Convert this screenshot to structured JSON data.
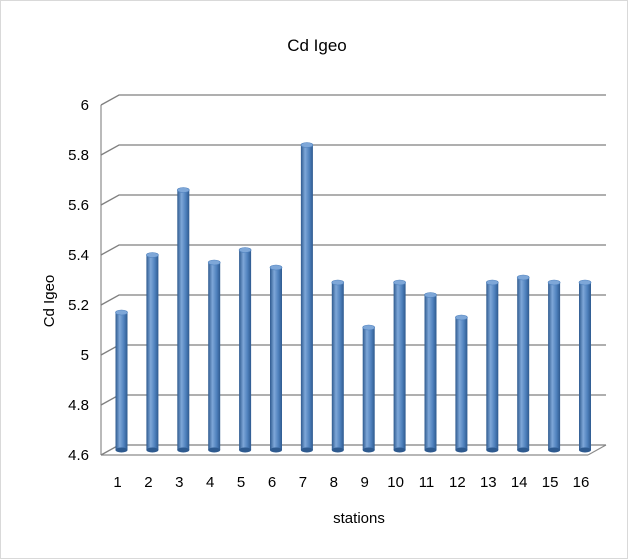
{
  "chart_data": {
    "type": "bar",
    "title": "Cd Igeo",
    "xlabel": "stations",
    "ylabel": "Cd Igeo",
    "ylim": [
      4.6,
      6.0
    ],
    "yticks": [
      4.6,
      4.8,
      5.0,
      5.2,
      5.4,
      5.6,
      5.8,
      6.0
    ],
    "ytick_labels": [
      "4.6",
      "4.8",
      "5",
      "5.2",
      "5.4",
      "5.6",
      "5.8",
      "6"
    ],
    "categories": [
      "1",
      "2",
      "3",
      "4",
      "5",
      "6",
      "7",
      "8",
      "9",
      "10",
      "11",
      "12",
      "13",
      "14",
      "15",
      "16"
    ],
    "values": [
      5.15,
      5.38,
      5.64,
      5.35,
      5.4,
      5.33,
      5.82,
      5.27,
      5.09,
      5.27,
      5.22,
      5.13,
      5.27,
      5.29,
      5.27,
      5.27
    ],
    "grid": true,
    "legend": "none",
    "colors": {
      "bar": "#4f81bd",
      "bar_dark": "#2e5a8f",
      "bar_light": "#7ea7d8"
    }
  }
}
